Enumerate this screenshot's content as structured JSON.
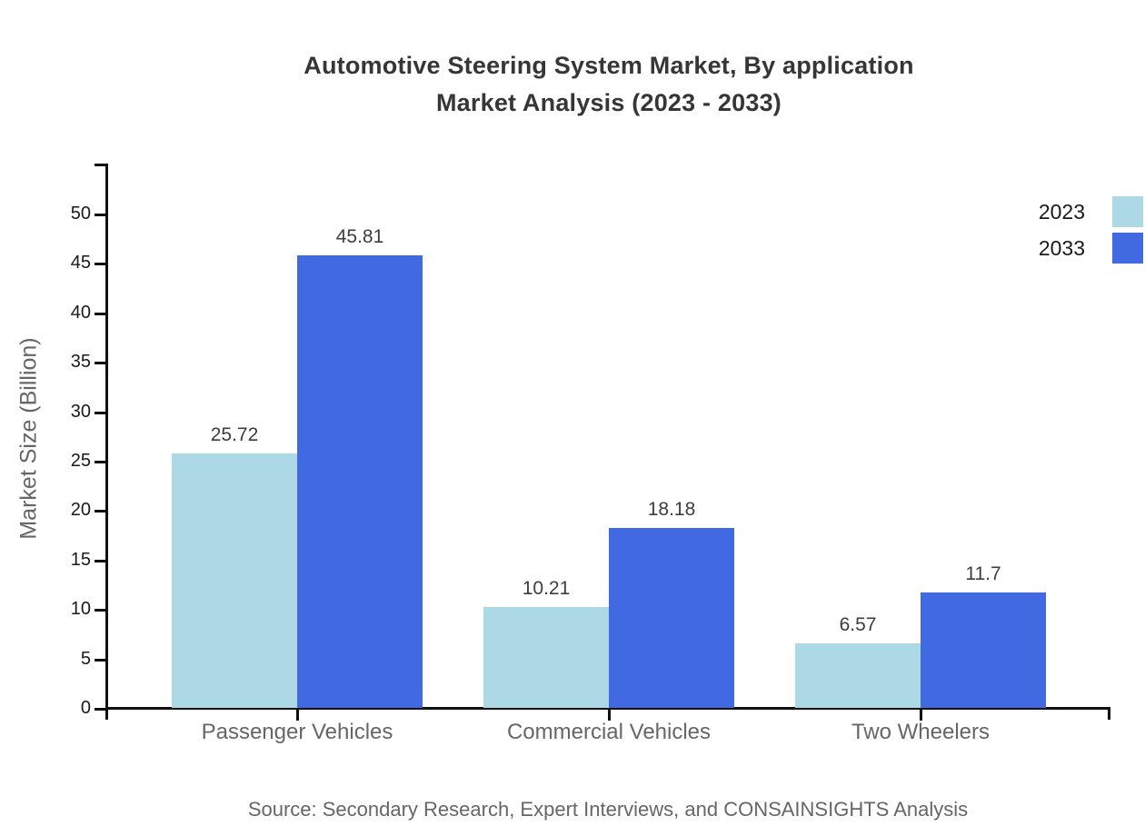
{
  "title": {
    "line1": "Automotive Steering System Market, By application",
    "line2": "Market Analysis (2023 - 2033)"
  },
  "y_axis": {
    "label": "Market Size (Billion)"
  },
  "source_note": "Source: Secondary Research, Expert Interviews, and CONSAINSIGHTS Analysis",
  "legend": {
    "items": [
      {
        "label": "2023",
        "color": "#ADD8E6"
      },
      {
        "label": "2033",
        "color": "#4169E1"
      }
    ]
  },
  "colors": {
    "series_2023": "#ADD8E6",
    "series_2033": "#4169E1",
    "axis": "#111111",
    "tick_label": "#1a1a1a",
    "title_text": "#363636",
    "value_label": "#3d3d3d",
    "category_label": "#666666",
    "source_text": "#666666"
  },
  "chart_data": {
    "type": "bar",
    "title": "Automotive Steering System Market, By application Market Analysis (2023 - 2033)",
    "categories": [
      "Passenger Vehicles",
      "Commercial Vehicles",
      "Two Wheelers"
    ],
    "series": [
      {
        "name": "2023",
        "color": "#ADD8E6",
        "values": [
          25.72,
          10.21,
          6.57
        ]
      },
      {
        "name": "2033",
        "color": "#4169E1",
        "values": [
          45.81,
          18.18,
          11.7
        ]
      }
    ],
    "value_labels": [
      "25.72",
      "45.81",
      "10.21",
      "18.18",
      "6.57",
      "11.7"
    ],
    "xlabel": "",
    "ylabel": "Market Size (Billion)",
    "ylim": [
      0,
      50
    ],
    "yticks": [
      0,
      5,
      10,
      15,
      20,
      25,
      30,
      35,
      40,
      45,
      50
    ],
    "grid": false,
    "legend_position": "top-right",
    "bar_value_labels_shown": true
  }
}
